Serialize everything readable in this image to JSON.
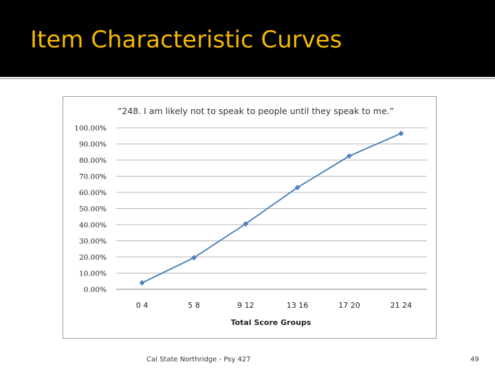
{
  "slide": {
    "title": "Item Characteristic Curves",
    "footer": "Cal State Northridge - Psy 427",
    "page_number": "49"
  },
  "colors": {
    "title_bar": "#000000",
    "title_text": "#f5b800",
    "series_line": "#4f81bd"
  },
  "chart_data": {
    "type": "line",
    "title": "“248. I am likely not to speak to people until they speak to me.”",
    "xlabel": "Total Score Groups",
    "ylabel": "",
    "categories": [
      "0 4",
      "5 8",
      "9 12",
      "13 16",
      "17 20",
      "21 24"
    ],
    "series": [
      {
        "values": [
          4.0,
          19.5,
          40.5,
          63.0,
          82.5,
          96.5
        ]
      }
    ],
    "ylim": [
      0,
      100
    ],
    "yticks": [
      "0.00%",
      "10.00%",
      "20.00%",
      "30.00%",
      "40.00%",
      "50.00%",
      "60.00%",
      "70.00%",
      "80.00%",
      "90.00%",
      "100.00%"
    ],
    "grid": true,
    "legend": "none"
  }
}
